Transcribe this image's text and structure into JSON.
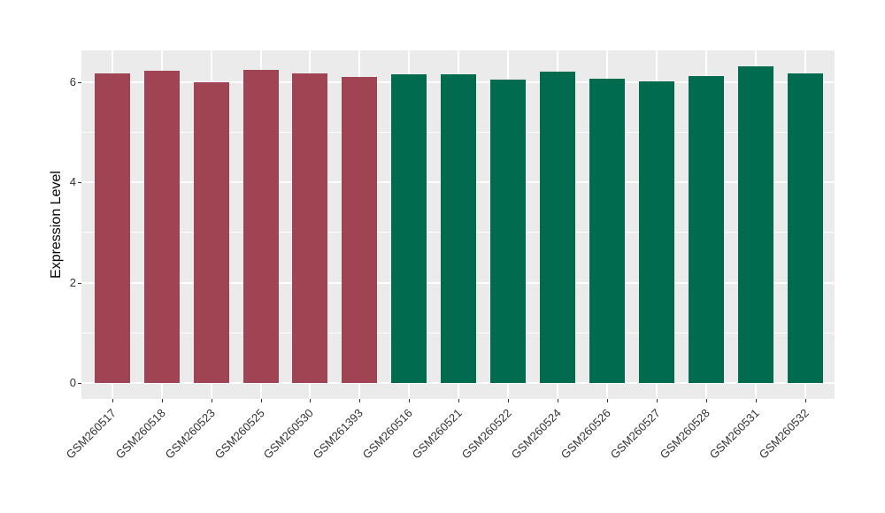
{
  "chart_data": {
    "type": "bar",
    "title": "",
    "xlabel": "",
    "ylabel": "Expression Level",
    "categories": [
      "GSM260517",
      "GSM260518",
      "GSM260523",
      "GSM260525",
      "GSM260530",
      "GSM261393",
      "GSM260516",
      "GSM260521",
      "GSM260522",
      "GSM260524",
      "GSM260526",
      "GSM260527",
      "GSM260528",
      "GSM260531",
      "GSM260532"
    ],
    "values": [
      6.17,
      6.22,
      5.99,
      6.24,
      6.17,
      6.1,
      6.15,
      6.16,
      6.05,
      6.21,
      6.06,
      6.02,
      6.11,
      6.32,
      6.17
    ],
    "bar_colors": [
      "#A04352",
      "#A04352",
      "#A04352",
      "#A04352",
      "#A04352",
      "#A04352",
      "#006B4E",
      "#006B4E",
      "#006B4E",
      "#006B4E",
      "#006B4E",
      "#006B4E",
      "#006B4E",
      "#006B4E",
      "#006B4E"
    ],
    "palette": {
      "maroon_group": "#A04352",
      "green_group": "#006B4E"
    },
    "yticks": [
      0,
      2,
      4,
      6
    ],
    "ytick_labels": [
      "0",
      "2",
      "4",
      "6"
    ],
    "yminor": [
      1,
      3,
      5
    ],
    "ylim": [
      0,
      6.63
    ],
    "grid": true,
    "legend": "none",
    "panel_bg": "#EBEBEB",
    "grid_color": "#FFFFFF"
  }
}
